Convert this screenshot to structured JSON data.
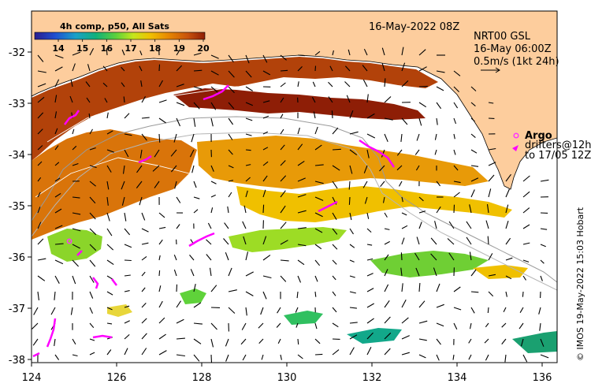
{
  "colorbar": {
    "title": "4h comp, p50, All Sats",
    "ticks": [
      "14",
      "15",
      "16",
      "17",
      "18",
      "19",
      "20"
    ]
  },
  "header": {
    "date": "16-May-2022 08Z",
    "product": "NRT00 GSL",
    "product_time": "16-May 06:00Z",
    "scale_label": "0.5m/s (1kt 24h)"
  },
  "legend": {
    "argo": "Argo",
    "drifters_line1": "drifters@12h",
    "drifters_line2": "to 17/05 12Z"
  },
  "credit": "© IMOS 19-May-2022 15:03 Hobart",
  "axes": {
    "x_ticks": [
      "124",
      "126",
      "128",
      "130",
      "132",
      "134",
      "136"
    ],
    "y_ticks": [
      "-32",
      "-33",
      "-34",
      "-35",
      "-36",
      "-37",
      "-38"
    ]
  },
  "colors": {
    "land": "#fdcd9d",
    "argo": "#ff33ff",
    "drifter": "#ff00ff",
    "sst_scale": [
      "#2a1d8f",
      "#1f4fd0",
      "#1aa0c8",
      "#10b07a",
      "#5fd23a",
      "#c6e61c",
      "#f0c000",
      "#e88a00",
      "#c8520c",
      "#8e1e06"
    ]
  }
}
